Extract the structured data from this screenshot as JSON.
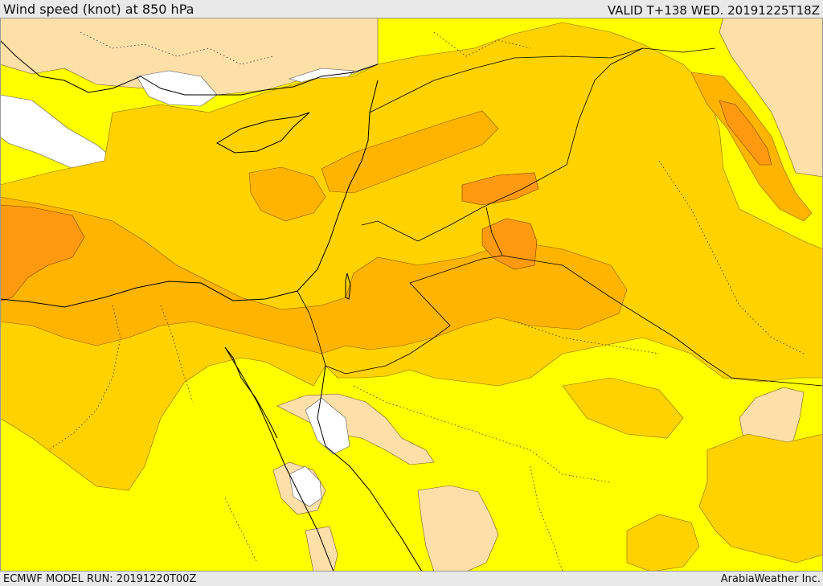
{
  "header": {
    "title": "Wind speed (knot) at 850 hPa",
    "valid": "VALID T+138 WED. 20191225T18Z"
  },
  "footer": {
    "model_run": "ECMWF MODEL RUN: 20191220T00Z",
    "credit": "ArabiaWeather Inc."
  },
  "colors": {
    "sea_ice_white": "#ffffff",
    "peach_low": "#fde0a8",
    "yellow": "#ffff00",
    "gold": "#ffd200",
    "orange": "#ffb400",
    "dark_orange": "#ff9a10",
    "border_line": "#000000"
  }
}
